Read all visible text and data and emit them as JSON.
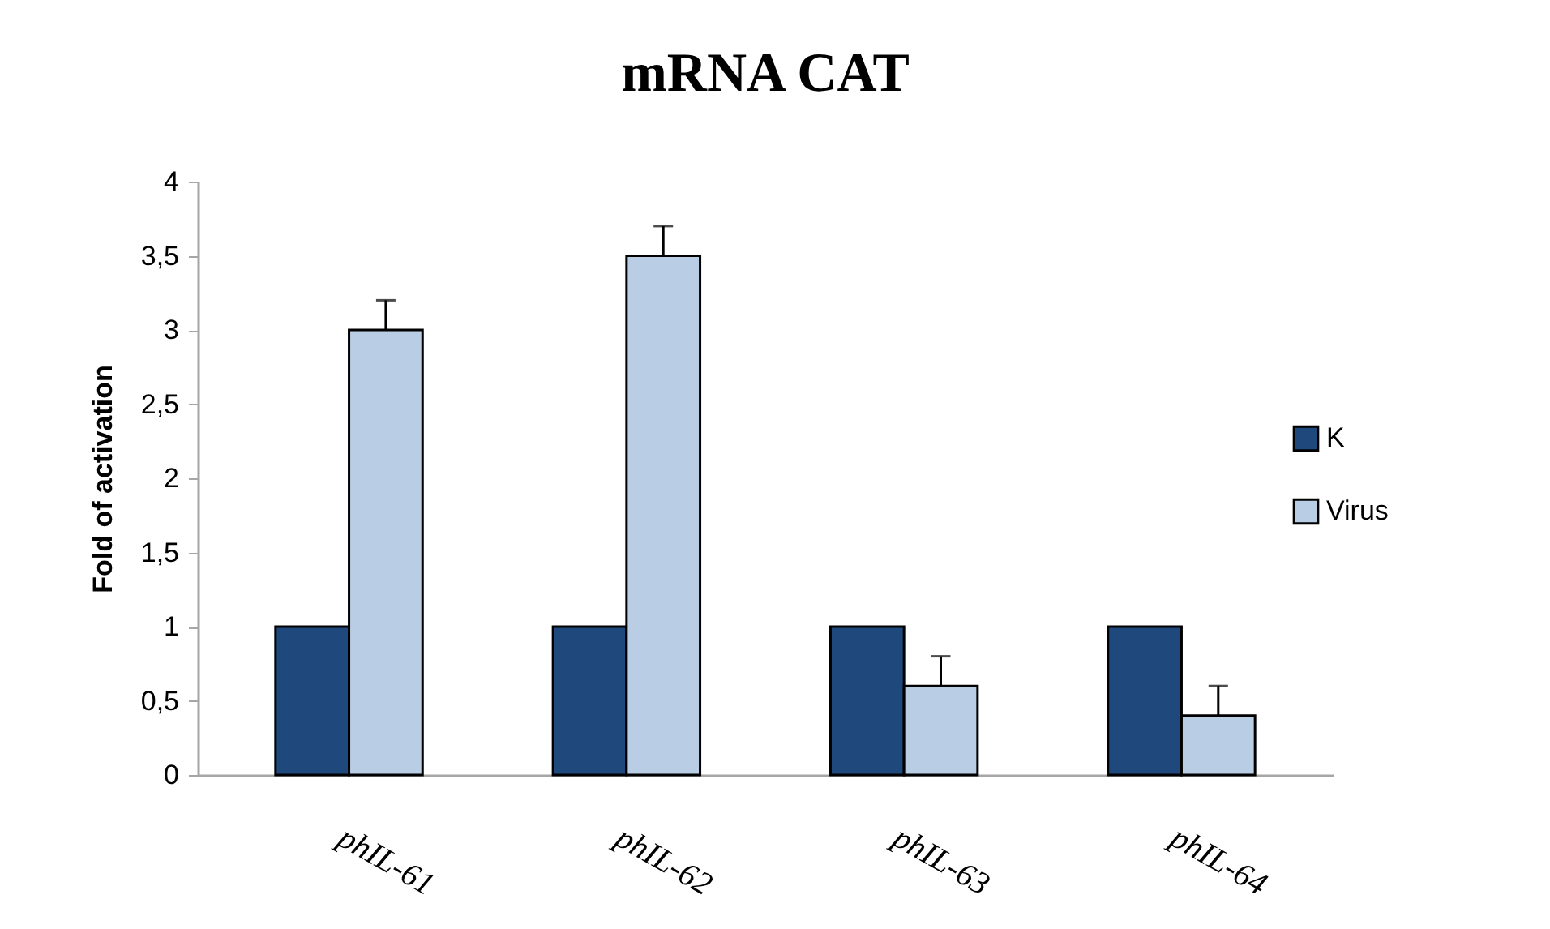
{
  "chart_data": {
    "type": "bar",
    "title": "mRNA CAT",
    "ylabel": "Fold of activation",
    "categories": [
      "phIL-61",
      "phIL-62",
      "phIL-63",
      "phIL-64"
    ],
    "series": [
      {
        "name": "K",
        "color": "#1f497d",
        "values": [
          1,
          1,
          1,
          1
        ]
      },
      {
        "name": "Virus",
        "color": "#b9cde5",
        "values": [
          3,
          3.5,
          0.6,
          0.4
        ],
        "errors": [
          [
            3,
            3.2
          ],
          [
            3.5,
            3.7
          ],
          [
            0.6,
            0.8
          ],
          [
            0.4,
            0.6
          ]
        ]
      }
    ],
    "ylim": [
      0,
      4
    ],
    "yticks": [
      0,
      {
        "value": 0.5,
        "label": "0,5"
      },
      1,
      {
        "value": 1.5,
        "label": "1,5"
      },
      2,
      {
        "value": 2.5,
        "label": "2,5"
      },
      3,
      {
        "value": 3.5,
        "label": "3,5"
      },
      4
    ],
    "grid": false,
    "legend": "right"
  }
}
